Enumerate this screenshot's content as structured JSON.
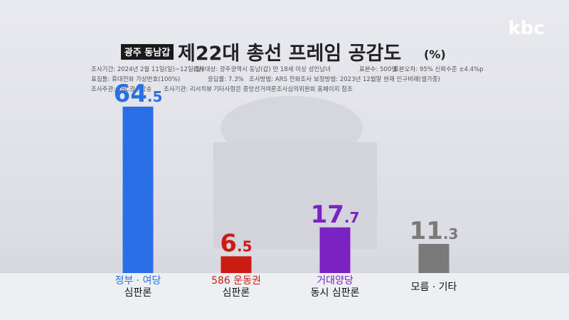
{
  "logo": "kbc",
  "badge": "광주 동남갑",
  "unit": "(%)",
  "survey_info": [
    [
      "조사기간: 2024년 2월 11일(일)~12일(월)",
      "조사대상: 광주광역시 동남(갑) 만 18세 이상 성인남녀",
      "표본수: 500명",
      "표본오차: 95% 신뢰수준 ±4.4%p"
    ],
    [
      "표집틀: 휴대전화 가상번호(100%)",
      "응답률: 7.3%",
      "조사방법: ARS 전화조사",
      "보정방법: 2023년 12월말 현재 인구비례(셀가중)"
    ],
    [
      "조사주관: KBC광주방송",
      "조사기관: 리서치뷰",
      "기타사항은 중앙선거여론조사심의위원회 홈페이지 참조"
    ]
  ],
  "chart_data": {
    "type": "bar",
    "title": "제22대 총선 프레임 공감도",
    "categories": [
      [
        "정부 · 여당",
        "심판론"
      ],
      [
        "586 운동권",
        "심판론"
      ],
      [
        "거대양당",
        "동시 심판론"
      ],
      [
        "모름 · 기타"
      ]
    ],
    "values": [
      64.5,
      6.5,
      17.7,
      11.3
    ],
    "colors": [
      "#2b6fe6",
      "#cc1b12",
      "#7a22c2",
      "#7a7a7a"
    ],
    "ylim": [
      0,
      70
    ]
  }
}
